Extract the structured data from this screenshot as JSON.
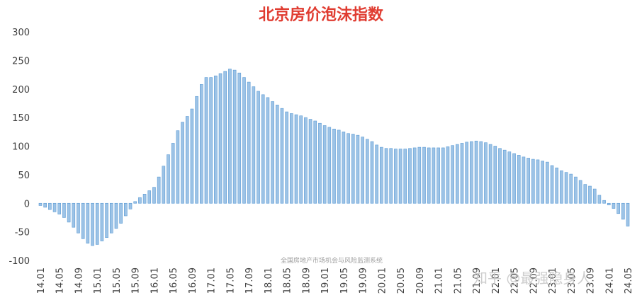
{
  "chart_data": {
    "type": "bar",
    "title": "北京房价泡沫指数",
    "annotations": [
      "全国房地产市场机会与风险监测系统",
      "知乎 @最强隐身人"
    ],
    "categories": [
      "14.01",
      null,
      null,
      null,
      "14.05",
      null,
      null,
      null,
      "14.09",
      null,
      null,
      null,
      "15.01",
      null,
      null,
      null,
      "15.05",
      null,
      null,
      null,
      "15.09",
      null,
      null,
      null,
      "16.01",
      null,
      null,
      null,
      "16.05",
      null,
      null,
      null,
      "16.09",
      null,
      null,
      null,
      "17.01",
      null,
      null,
      null,
      "17.05",
      null,
      null,
      null,
      "17.09",
      null,
      null,
      null,
      "18.01",
      null,
      null,
      null,
      "18.05",
      null,
      null,
      null,
      "18.09",
      null,
      null,
      null,
      "19.01",
      null,
      null,
      null,
      "19.05",
      null,
      null,
      null,
      "19.09",
      null,
      null,
      null,
      "20.01",
      null,
      null,
      null,
      "20.05",
      null,
      null,
      null,
      "20.09",
      null,
      null,
      null,
      "21.01",
      null,
      null,
      null,
      "21.05",
      null,
      null,
      null,
      "21.09",
      null,
      null,
      null,
      "22.01",
      null,
      null,
      null,
      "22.05",
      null,
      null,
      null,
      "22.09",
      null,
      null,
      null,
      "23.01",
      null,
      null,
      null,
      "23.05",
      null,
      null,
      null,
      "23.09",
      null,
      null,
      null,
      "24.01",
      null,
      null,
      null,
      "24.05"
    ],
    "values": [
      -4,
      -7,
      -11,
      -15,
      -19,
      -25,
      -33,
      -42,
      -52,
      -62,
      -70,
      -74,
      -72,
      -66,
      -60,
      -52,
      -44,
      -35,
      -22,
      -10,
      3,
      10,
      16,
      22,
      28,
      46,
      65,
      85,
      105,
      127,
      142,
      152,
      165,
      187,
      208,
      220,
      220,
      223,
      227,
      231,
      235,
      233,
      228,
      220,
      212,
      204,
      196,
      190,
      185,
      178,
      172,
      166,
      160,
      157,
      155,
      153,
      150,
      147,
      144,
      140,
      136,
      133,
      130,
      128,
      125,
      122,
      121,
      119,
      116,
      112,
      108,
      102,
      98,
      96,
      96,
      95,
      95,
      95,
      96,
      97,
      98,
      98,
      97,
      97,
      97,
      97,
      99,
      101,
      103,
      105,
      107,
      108,
      109,
      108,
      106,
      103,
      100,
      96,
      93,
      90,
      87,
      84,
      81,
      79,
      77,
      76,
      74,
      72,
      66,
      62,
      57,
      54,
      51,
      46,
      40,
      33,
      30,
      25,
      14,
      5,
      -3,
      -9,
      -18,
      -28,
      -40
    ],
    "color": "#9dc3e6",
    "edge_color": "#5b9bd5",
    "ylim": [
      -100,
      300
    ],
    "yticks": [
      -100,
      -50,
      0,
      50,
      100,
      150,
      200,
      250,
      300
    ],
    "grid": false
  }
}
